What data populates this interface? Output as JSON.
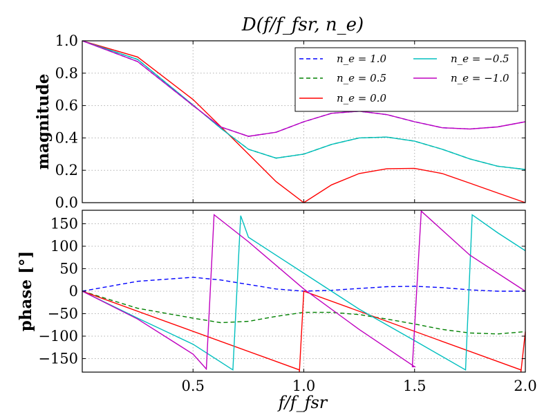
{
  "chart_data": [
    {
      "type": "line",
      "title": "D(f/f_fsr, n_e)",
      "ylabel": "magnitude",
      "xlabel": "",
      "xlim": [
        0,
        2
      ],
      "ylim": [
        0,
        1
      ],
      "grid": true,
      "legend_position": "top-right",
      "yticks": [
        "0.0",
        "0.2",
        "0.4",
        "0.6",
        "0.8",
        "1.0"
      ],
      "series": [
        {
          "name": "n_e = 1.0",
          "legend": "n_e = 1.0",
          "color": "#0000ff",
          "dash": true,
          "x": [
            0,
            0.25,
            0.5,
            0.625,
            0.75,
            0.875,
            1.0,
            1.125,
            1.25,
            1.375,
            1.5,
            1.625,
            1.75,
            1.875,
            2.0
          ],
          "y": [
            1.0,
            0.872,
            0.6,
            0.468,
            0.41,
            0.435,
            0.5,
            0.552,
            0.565,
            0.544,
            0.5,
            0.463,
            0.455,
            0.468,
            0.5
          ]
        },
        {
          "name": "n_e = 0.5",
          "legend": "n_e = 0.5",
          "color": "#008000",
          "dash": true,
          "x": [
            0,
            0.25,
            0.5,
            0.625,
            0.75,
            0.875,
            1.0,
            1.125,
            1.25,
            1.375,
            1.5,
            1.625,
            1.75,
            1.875,
            2.0
          ],
          "y": [
            1.0,
            0.885,
            0.603,
            0.46,
            0.33,
            0.275,
            0.3,
            0.36,
            0.4,
            0.405,
            0.38,
            0.33,
            0.27,
            0.225,
            0.205
          ]
        },
        {
          "name": "n_e = 0.0",
          "legend": "n_e = 0.0",
          "color": "#ff0000",
          "dash": false,
          "x": [
            0,
            0.25,
            0.5,
            0.625,
            0.75,
            0.875,
            1.0,
            1.125,
            1.25,
            1.375,
            1.5,
            1.625,
            1.75,
            1.875,
            2.0
          ],
          "y": [
            1.0,
            0.9,
            0.637,
            0.47,
            0.3,
            0.13,
            0.0,
            0.11,
            0.18,
            0.21,
            0.212,
            0.18,
            0.12,
            0.06,
            0.0
          ]
        },
        {
          "name": "n_e = -0.5",
          "legend": "n_e = −0.5",
          "color": "#00bfbf",
          "dash": false,
          "x": [
            0,
            0.25,
            0.5,
            0.625,
            0.75,
            0.875,
            1.0,
            1.125,
            1.25,
            1.375,
            1.5,
            1.625,
            1.75,
            1.875,
            2.0
          ],
          "y": [
            1.0,
            0.885,
            0.603,
            0.46,
            0.33,
            0.275,
            0.3,
            0.36,
            0.4,
            0.405,
            0.38,
            0.33,
            0.27,
            0.225,
            0.205
          ]
        },
        {
          "name": "n_e = -1.0",
          "legend": "n_e = −1.0",
          "color": "#bf00bf",
          "dash": false,
          "x": [
            0,
            0.25,
            0.5,
            0.625,
            0.75,
            0.875,
            1.0,
            1.125,
            1.25,
            1.375,
            1.5,
            1.625,
            1.75,
            1.875,
            2.0
          ],
          "y": [
            1.0,
            0.872,
            0.6,
            0.468,
            0.41,
            0.435,
            0.5,
            0.552,
            0.565,
            0.544,
            0.5,
            0.463,
            0.455,
            0.468,
            0.5
          ]
        }
      ]
    },
    {
      "type": "line",
      "title": "",
      "ylabel": "phase [°]",
      "xlabel": "f/f_fsr",
      "xlim": [
        0,
        2
      ],
      "ylim": [
        -180,
        180
      ],
      "grid": true,
      "xticks": [
        "0.5",
        "1.0",
        "1.5",
        "2.0"
      ],
      "yticks": [
        "−150",
        "−100",
        "−50",
        "0",
        "50",
        "100",
        "150"
      ],
      "series": [
        {
          "name": "n_e = 1.0",
          "color": "#0000ff",
          "dash": true,
          "x": [
            0,
            0.25,
            0.5,
            0.625,
            0.75,
            0.875,
            1.0,
            1.125,
            1.25,
            1.375,
            1.5,
            1.625,
            1.75,
            1.875,
            2.0
          ],
          "y": [
            0,
            22,
            31,
            25,
            15,
            5,
            0,
            2,
            6,
            10,
            11,
            8,
            3,
            0,
            0
          ]
        },
        {
          "name": "n_e = 0.5",
          "color": "#008000",
          "dash": true,
          "x": [
            0,
            0.25,
            0.5,
            0.625,
            0.75,
            0.875,
            1.0,
            1.125,
            1.25,
            1.375,
            1.5,
            1.625,
            1.75,
            1.875,
            2.0
          ],
          "y": [
            0,
            -38,
            -60,
            -70,
            -67,
            -56,
            -47,
            -47,
            -52,
            -62,
            -73,
            -85,
            -93,
            -95,
            -90
          ]
        },
        {
          "name": "n_e = 0.0",
          "color": "#ff0000",
          "dash": false,
          "x": [
            0,
            0.98,
            0.98,
            1.0,
            1.98,
            1.98,
            2.0
          ],
          "y": [
            0,
            -175,
            -180,
            0,
            -175,
            -180,
            -90
          ]
        },
        {
          "name": "n_e = -0.5",
          "color": "#00bfbf",
          "dash": false,
          "x": [
            0,
            0.25,
            0.5,
            0.68,
            0.715,
            0.75,
            1.0,
            1.25,
            1.5,
            1.73,
            1.76,
            1.875,
            2.0
          ],
          "y": [
            0,
            -60,
            -118,
            -175,
            168,
            120,
            40,
            -40,
            -110,
            -175,
            170,
            130,
            90
          ]
        },
        {
          "name": "n_e = -1.0",
          "color": "#bf00bf",
          "dash": false,
          "x": [
            0,
            0.25,
            0.5,
            0.56,
            0.595,
            0.75,
            1.0,
            1.25,
            1.5,
            1.49,
            1.53,
            1.75,
            2.0
          ],
          "y": [
            0,
            -62,
            -140,
            -173,
            170,
            110,
            5,
            -85,
            -168,
            -168,
            178,
            80,
            0
          ]
        }
      ]
    }
  ]
}
